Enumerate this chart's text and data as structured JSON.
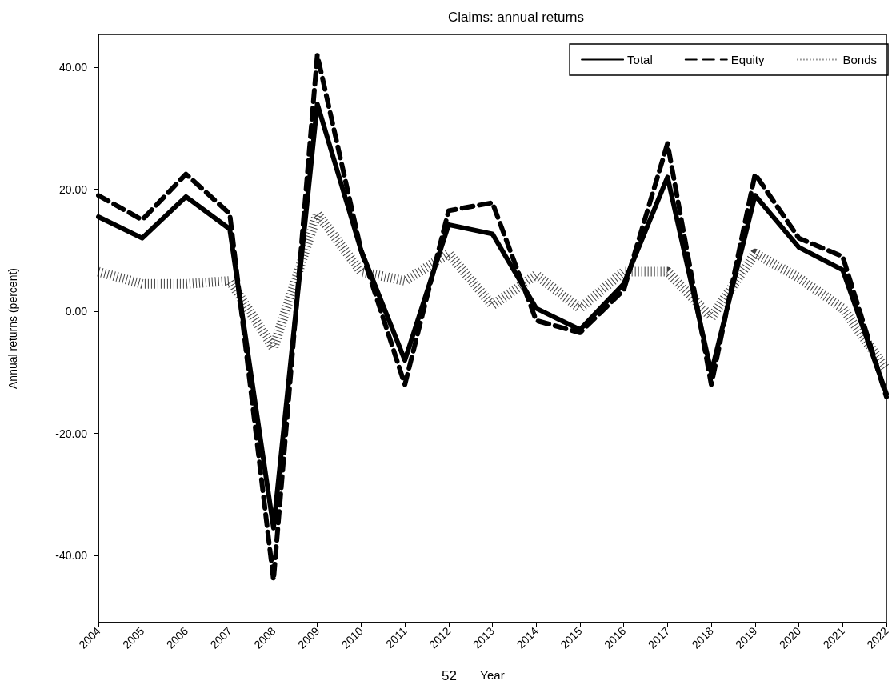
{
  "chart_data": {
    "type": "line",
    "title": "Claims: annual returns",
    "xlabel": "Year",
    "ylabel": "Annual returns (percent)",
    "categories": [
      "2004",
      "2005",
      "2006",
      "2007",
      "2008",
      "2009",
      "2010",
      "2011",
      "2012",
      "2013",
      "2014",
      "2015",
      "2016",
      "2017",
      "2018",
      "2019",
      "2020",
      "2021",
      "2022"
    ],
    "series": [
      {
        "name": "Total",
        "color": "#000000",
        "line_style": "solid",
        "values": [
          15.5,
          12,
          18.8,
          13.5,
          -35.5,
          34,
          10,
          -8,
          14.2,
          12.7,
          0.5,
          -3,
          4.5,
          22,
          -10,
          19,
          10.5,
          6.8,
          -13.5
        ]
      },
      {
        "name": "Equity",
        "color": "#000000",
        "line_style": "dashed",
        "values": [
          19,
          15,
          22.5,
          16,
          -44,
          42,
          10,
          -12,
          16.5,
          17.8,
          -1.5,
          -3.5,
          3.5,
          27.5,
          -12,
          22.5,
          12,
          9,
          -14
        ]
      },
      {
        "name": "Bonds",
        "color": "#000000",
        "line_style": "dotted",
        "values": [
          6.5,
          4.5,
          4.5,
          5,
          -6,
          16,
          6.5,
          5,
          9.5,
          1,
          6,
          0.5,
          6.5,
          6.5,
          -1,
          9.5,
          5.5,
          0.5,
          -9.5
        ]
      }
    ],
    "ylim": [
      -51,
      45.4
    ],
    "yticks": [
      {
        "value": -40,
        "label": "-40.00"
      },
      {
        "value": -20,
        "label": "-20.00"
      },
      {
        "value": 0,
        "label": "0.00"
      },
      {
        "value": 20,
        "label": "20.00"
      },
      {
        "value": 40,
        "label": "40.00"
      }
    ],
    "grid": false,
    "legend": "top right",
    "marker": "none",
    "annotations": [
      "52"
    ]
  }
}
